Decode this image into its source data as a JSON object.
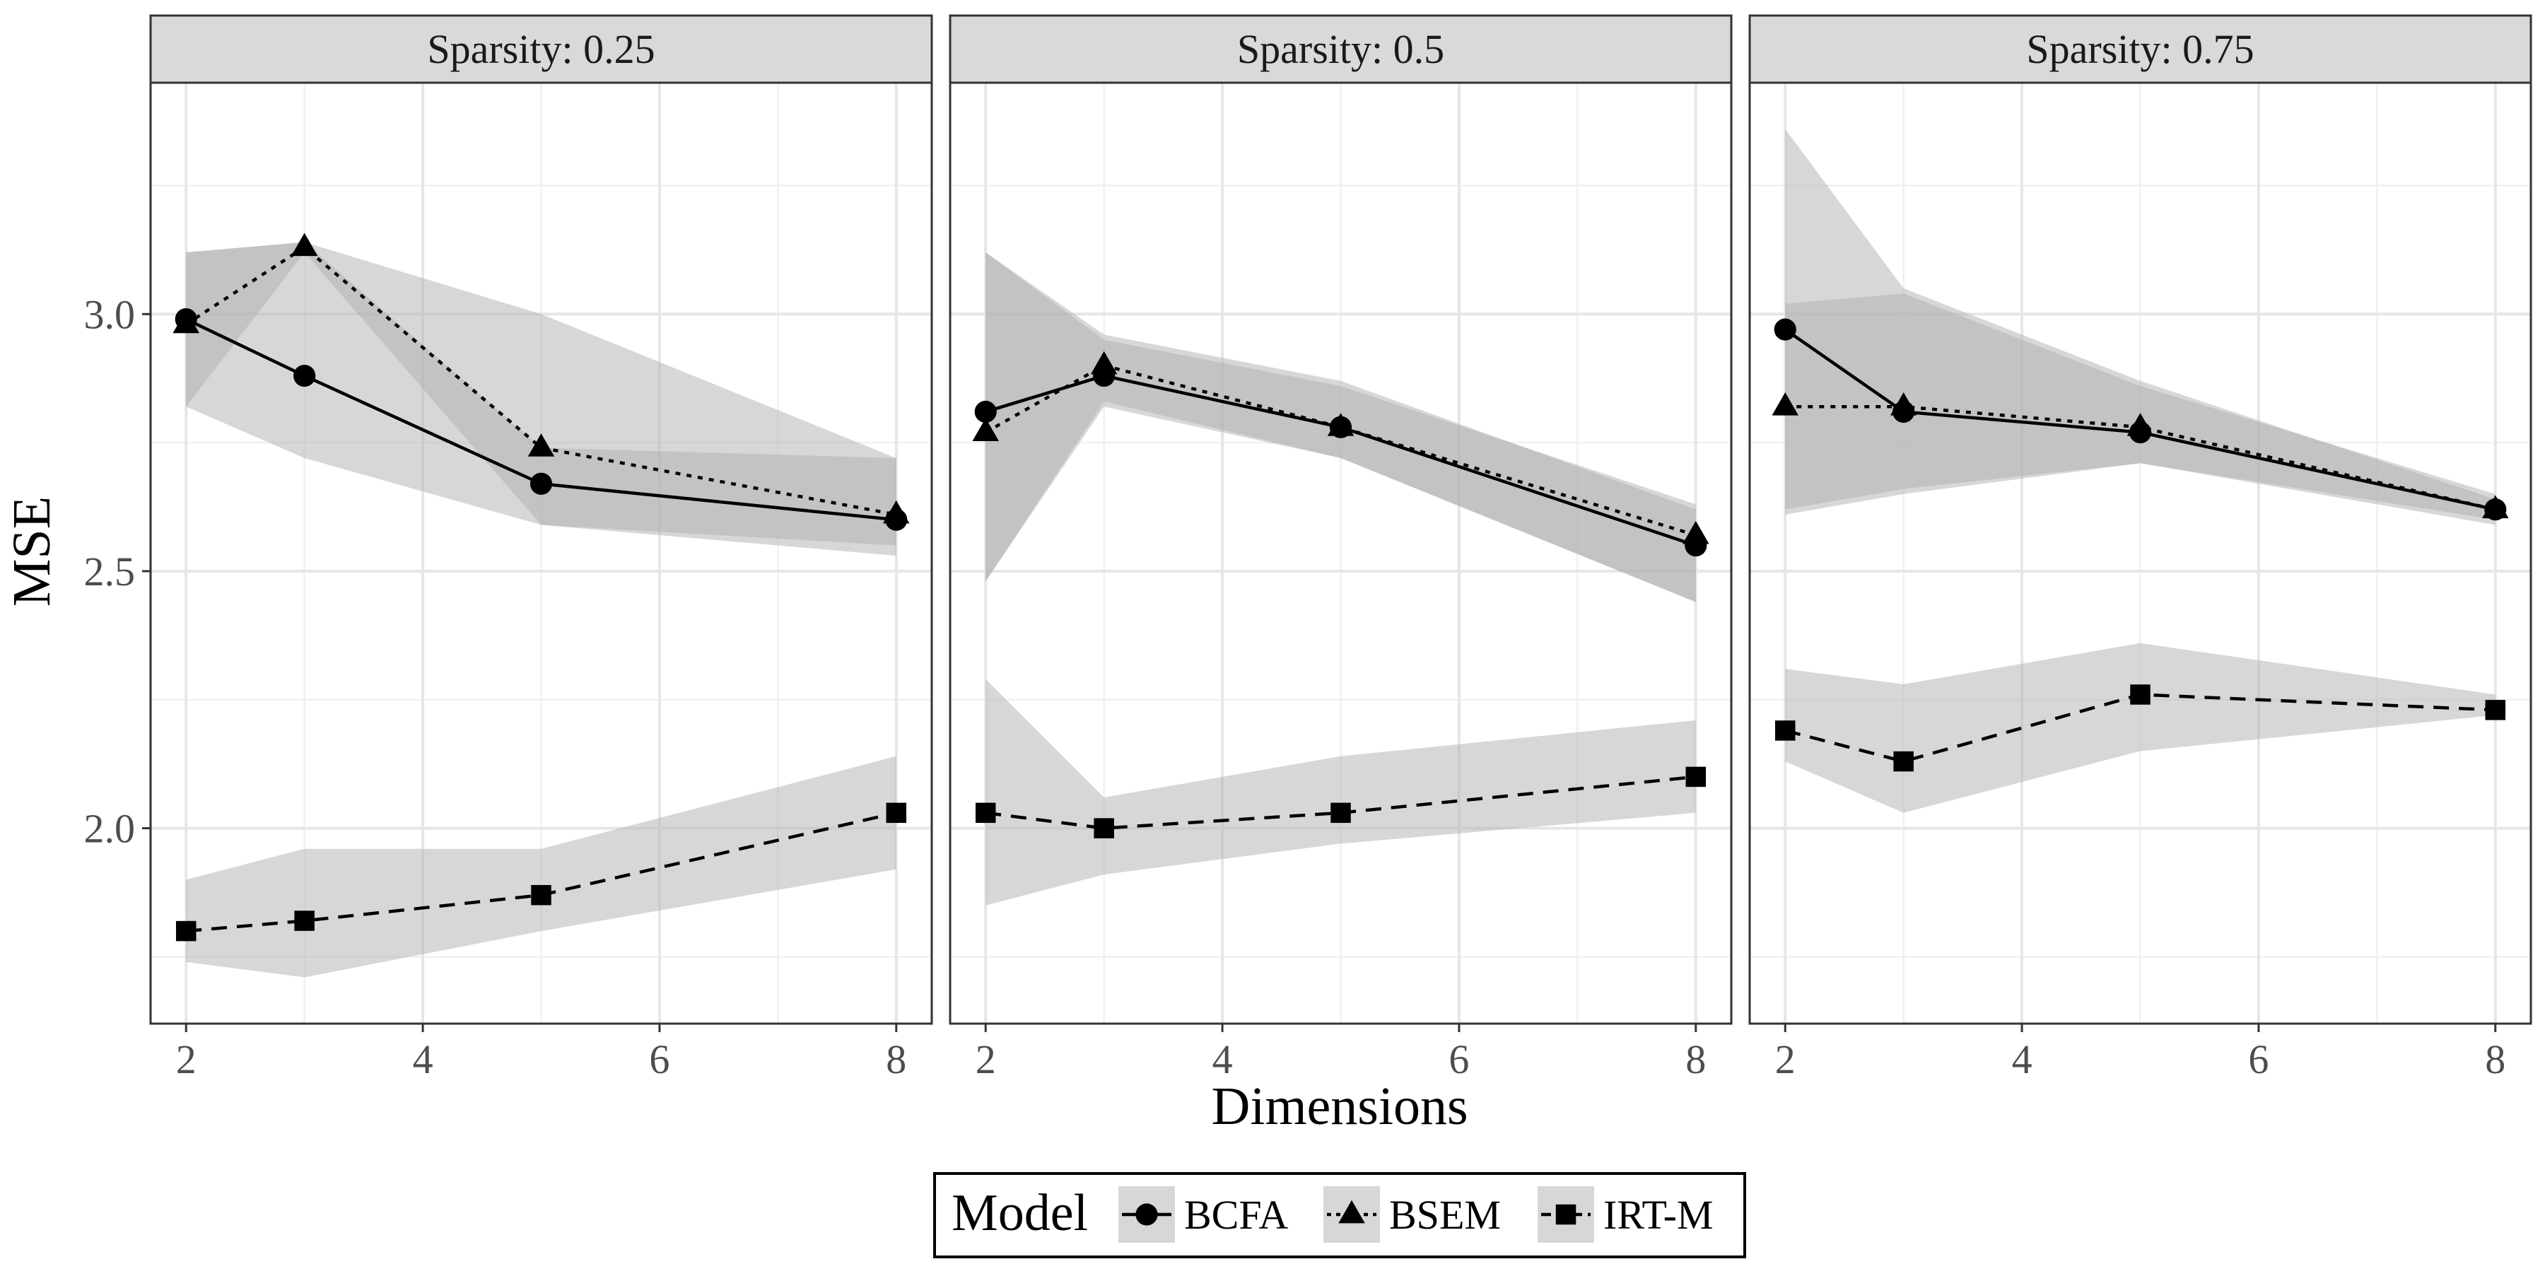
{
  "chart_data": {
    "type": "line",
    "xlabel": "Dimensions",
    "ylabel": "MSE",
    "x": [
      2,
      3,
      5,
      8
    ],
    "xlim": [
      1.7,
      8.3
    ],
    "ylim": [
      1.62,
      3.45
    ],
    "x_ticks": [
      2,
      4,
      6,
      8
    ],
    "x_tick_labels": [
      "2",
      "4",
      "6",
      "8"
    ],
    "y_ticks": [
      2.0,
      2.5,
      3.0
    ],
    "y_tick_labels": [
      "2.0",
      "2.5",
      "3.0"
    ],
    "grid": true,
    "band_color": "#b0b0b0",
    "band_opacity": 0.5,
    "legend": {
      "title": "Model",
      "position": "bottom",
      "items": [
        {
          "name": "BCFA",
          "marker": "circle",
          "line": "solid"
        },
        {
          "name": "BSEM",
          "marker": "triangle",
          "line": "dotted"
        },
        {
          "name": "IRT-M",
          "marker": "square",
          "line": "dashed"
        }
      ]
    },
    "panels": [
      {
        "title": "Sparsity: 0.25",
        "series": [
          {
            "name": "BCFA",
            "values": [
              2.99,
              2.88,
              2.67,
              2.6
            ],
            "lower": [
              2.82,
              2.72,
              2.59,
              2.53
            ],
            "upper": [
              3.12,
              3.14,
              3.0,
              2.72
            ]
          },
          {
            "name": "BSEM",
            "values": [
              2.98,
              3.13,
              2.74,
              2.61
            ],
            "lower": [
              2.82,
              3.12,
              2.59,
              2.55
            ],
            "upper": [
              3.12,
              3.14,
              2.74,
              2.72
            ]
          },
          {
            "name": "IRT-M",
            "values": [
              1.8,
              1.82,
              1.87,
              2.03
            ],
            "lower": [
              1.74,
              1.71,
              1.8,
              1.92
            ],
            "upper": [
              1.9,
              1.96,
              1.96,
              2.14
            ]
          }
        ]
      },
      {
        "title": "Sparsity: 0.5",
        "series": [
          {
            "name": "BCFA",
            "values": [
              2.81,
              2.88,
              2.78,
              2.55
            ],
            "lower": [
              2.48,
              2.82,
              2.72,
              2.44
            ],
            "upper": [
              3.12,
              2.96,
              2.87,
              2.62
            ]
          },
          {
            "name": "BSEM",
            "values": [
              2.77,
              2.9,
              2.78,
              2.57
            ],
            "lower": [
              2.48,
              2.83,
              2.72,
              2.44
            ],
            "upper": [
              3.12,
              2.95,
              2.86,
              2.63
            ]
          },
          {
            "name": "IRT-M",
            "values": [
              2.03,
              2.0,
              2.03,
              2.1
            ],
            "lower": [
              1.85,
              1.91,
              1.97,
              2.03
            ],
            "upper": [
              2.29,
              2.06,
              2.14,
              2.21
            ]
          }
        ]
      },
      {
        "title": "Sparsity: 0.75",
        "series": [
          {
            "name": "BCFA",
            "values": [
              2.97,
              2.81,
              2.77,
              2.62
            ],
            "lower": [
              2.61,
              2.65,
              2.71,
              2.59
            ],
            "upper": [
              3.36,
              3.05,
              2.87,
              2.64
            ]
          },
          {
            "name": "BSEM",
            "values": [
              2.82,
              2.82,
              2.78,
              2.62
            ],
            "lower": [
              2.62,
              2.66,
              2.71,
              2.6
            ],
            "upper": [
              3.02,
              3.04,
              2.86,
              2.65
            ]
          },
          {
            "name": "IRT-M",
            "values": [
              2.19,
              2.13,
              2.26,
              2.23
            ],
            "lower": [
              2.13,
              2.03,
              2.15,
              2.22
            ],
            "upper": [
              2.31,
              2.28,
              2.36,
              2.26
            ]
          }
        ]
      }
    ]
  }
}
